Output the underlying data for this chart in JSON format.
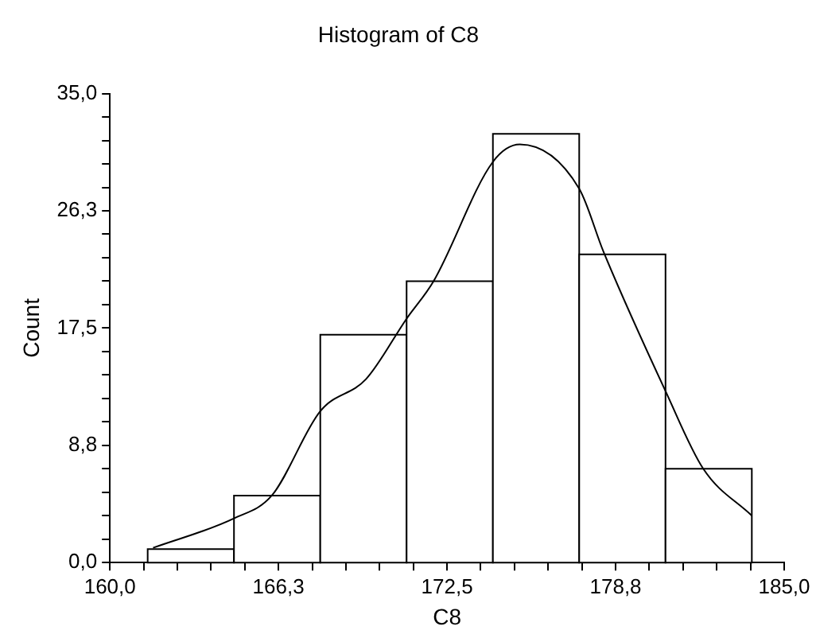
{
  "chart_data": {
    "type": "histogram",
    "title": "Histogram of C8",
    "xlabel": "C8",
    "ylabel": "Count",
    "bins": [
      161.4,
      164.6,
      167.8,
      171.0,
      174.2,
      177.4,
      180.6,
      183.8
    ],
    "values": [
      1,
      5,
      17,
      21,
      32,
      23,
      7
    ],
    "color": "#ffffff",
    "series": [
      {
        "type": "line",
        "color": "#000000",
        "x": [
          161.6,
          164.6,
          166.0,
          167.8,
          169.5,
          171.0,
          172.0,
          174.2,
          175.2,
          177.4,
          178.3,
          180.6,
          182.0,
          183.8
        ],
        "values": [
          1.1,
          3.3,
          5.0,
          11.3,
          13.7,
          18.2,
          21.0,
          29.9,
          31.2,
          27.9,
          23.2,
          12.8,
          7.0,
          3.5
        ]
      }
    ],
    "xlim": [
      160,
      185
    ],
    "xticks": [
      {
        "value": 160,
        "label": "160,0"
      },
      {
        "value": 161.25,
        "label": null
      },
      {
        "value": 162.5,
        "label": null
      },
      {
        "value": 163.75,
        "label": null
      },
      {
        "value": 165,
        "label": null
      },
      {
        "value": 166.25,
        "label": "166,3"
      },
      {
        "value": 167.5,
        "label": null
      },
      {
        "value": 168.75,
        "label": null
      },
      {
        "value": 170,
        "label": null
      },
      {
        "value": 171.25,
        "label": null
      },
      {
        "value": 172.5,
        "label": "172,5"
      },
      {
        "value": 173.75,
        "label": null
      },
      {
        "value": 175,
        "label": null
      },
      {
        "value": 176.25,
        "label": null
      },
      {
        "value": 177.5,
        "label": null
      },
      {
        "value": 178.75,
        "label": "178,8"
      },
      {
        "value": 180,
        "label": null
      },
      {
        "value": 181.25,
        "label": null
      },
      {
        "value": 182.5,
        "label": null
      },
      {
        "value": 183.75,
        "label": null
      },
      {
        "value": 185,
        "label": "185,0"
      }
    ],
    "ylim": [
      0,
      35
    ],
    "yticks": [
      {
        "value": 0,
        "label": "0,0"
      },
      {
        "value": 1.75,
        "label": null
      },
      {
        "value": 3.5,
        "label": null
      },
      {
        "value": 5.25,
        "label": null
      },
      {
        "value": 7,
        "label": null
      },
      {
        "value": 8.75,
        "label": "8,8"
      },
      {
        "value": 10.5,
        "label": null
      },
      {
        "value": 12.25,
        "label": null
      },
      {
        "value": 14,
        "label": null
      },
      {
        "value": 15.75,
        "label": null
      },
      {
        "value": 17.5,
        "label": "17,5"
      },
      {
        "value": 19.25,
        "label": null
      },
      {
        "value": 21,
        "label": null
      },
      {
        "value": 22.75,
        "label": null
      },
      {
        "value": 24.5,
        "label": null
      },
      {
        "value": 26.25,
        "label": "26,3"
      },
      {
        "value": 28,
        "label": null
      },
      {
        "value": 29.75,
        "label": null
      },
      {
        "value": 31.5,
        "label": null
      },
      {
        "value": 33.25,
        "label": null
      },
      {
        "value": 35,
        "label": "35,0"
      }
    ],
    "grid": false,
    "legend": false,
    "marker": "none",
    "line_style": "solid"
  }
}
